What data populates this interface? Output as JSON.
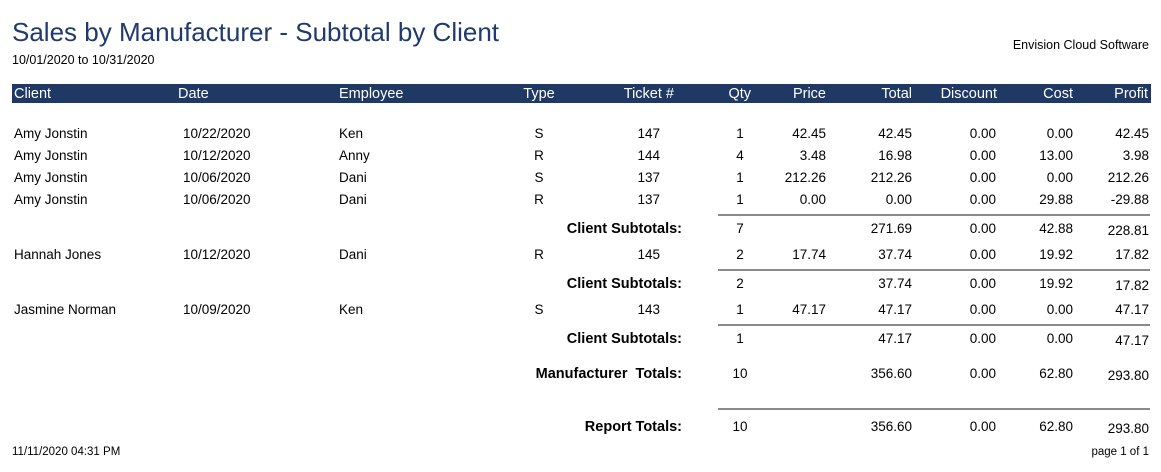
{
  "header": {
    "title": "Sales by Manufacturer - Subtotal by Client",
    "date_range": "10/01/2020 to 10/31/2020",
    "company": "Envision Cloud Software"
  },
  "table": {
    "columns": [
      "Client",
      "Date",
      "Employee",
      "Type",
      "Ticket #",
      "Qty",
      "Price",
      "Total",
      "Discount",
      "Cost",
      "Profit"
    ],
    "groups": [
      {
        "rows": [
          [
            "Amy Jonstin",
            "10/22/2020",
            "Ken",
            "S",
            "147",
            "1",
            "42.45",
            "42.45",
            "0.00",
            "0.00",
            "42.45"
          ],
          [
            "Amy Jonstin",
            "10/12/2020",
            "Anny",
            "R",
            "144",
            "4",
            "3.48",
            "16.98",
            "0.00",
            "13.00",
            "3.98"
          ],
          [
            "Amy Jonstin",
            "10/06/2020",
            "Dani",
            "S",
            "137",
            "1",
            "212.26",
            "212.26",
            "0.00",
            "0.00",
            "212.26"
          ],
          [
            "Amy Jonstin",
            "10/06/2020",
            "Dani",
            "R",
            "137",
            "1",
            "0.00",
            "0.00",
            "0.00",
            "29.88",
            "-29.88"
          ]
        ],
        "subtotal": {
          "label": "Client Subtotals:",
          "qty": "7",
          "total": "271.69",
          "discount": "0.00",
          "cost": "42.88",
          "profit": "228.81"
        }
      },
      {
        "rows": [
          [
            "Hannah Jones",
            "10/12/2020",
            "Dani",
            "R",
            "145",
            "2",
            "17.74",
            "37.74",
            "0.00",
            "19.92",
            "17.82"
          ]
        ],
        "subtotal": {
          "label": "Client Subtotals:",
          "qty": "2",
          "total": "37.74",
          "discount": "0.00",
          "cost": "19.92",
          "profit": "17.82"
        }
      },
      {
        "rows": [
          [
            "Jasmine Norman",
            "10/09/2020",
            "Ken",
            "S",
            "143",
            "1",
            "47.17",
            "47.17",
            "0.00",
            "0.00",
            "47.17"
          ]
        ],
        "subtotal": {
          "label": "Client Subtotals:",
          "qty": "1",
          "total": "47.17",
          "discount": "0.00",
          "cost": "0.00",
          "profit": "47.17"
        }
      }
    ],
    "manufacturer_totals": {
      "label": "Manufacturer  Totals:",
      "qty": "10",
      "total": "356.60",
      "discount": "0.00",
      "cost": "62.80",
      "profit": "293.80"
    },
    "report_totals": {
      "label": "Report Totals:",
      "qty": "10",
      "total": "356.60",
      "discount": "0.00",
      "cost": "62.80",
      "profit": "293.80"
    }
  },
  "footer": {
    "timestamp": "11/11/2020 04:31 PM",
    "page": "page 1 of 1"
  }
}
